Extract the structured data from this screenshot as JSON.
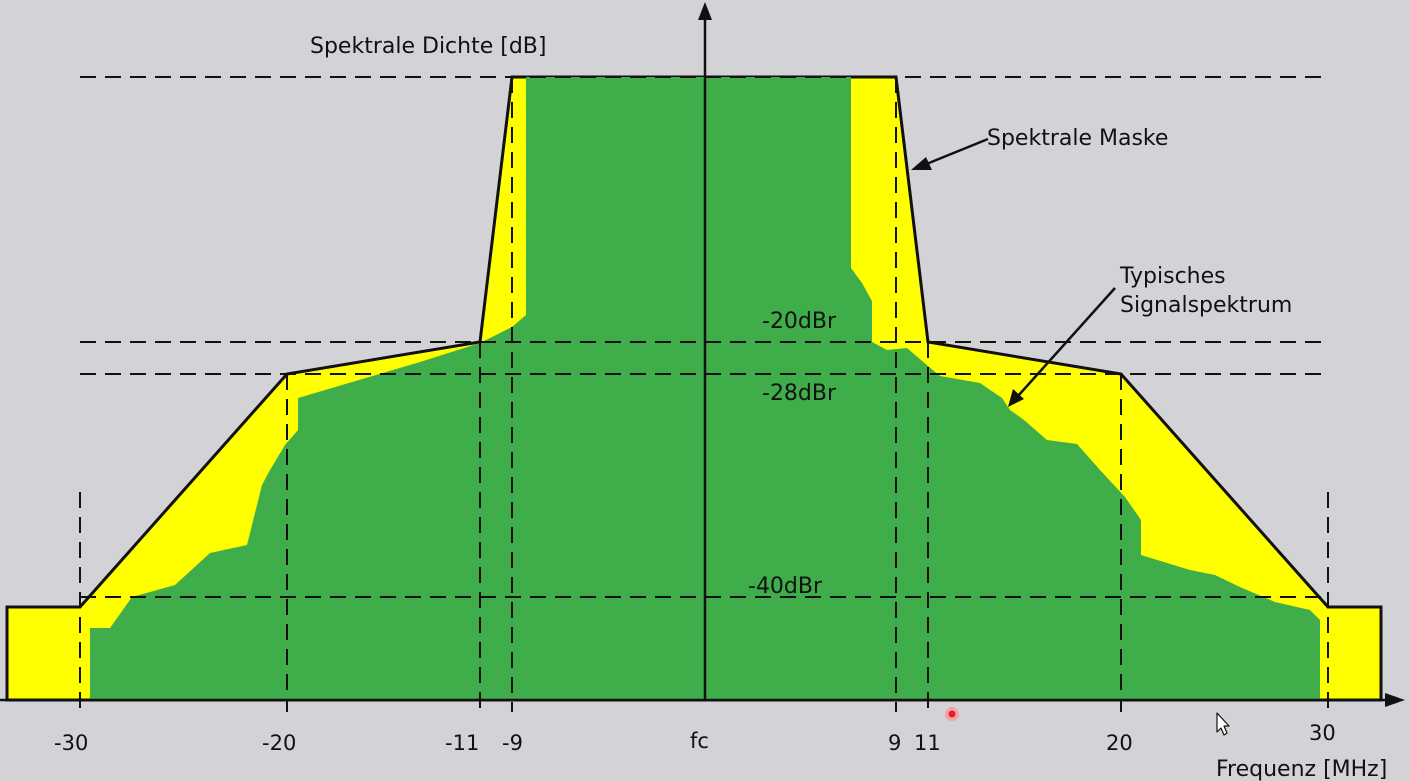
{
  "diagram": {
    "y_axis_label": "Spektrale Dichte [dB]",
    "x_axis_label": "Frequenz [MHz]",
    "center_label": "fc",
    "levels": [
      "-20dBr",
      "-28dBr",
      "-40dBr"
    ],
    "annotations": {
      "mask": "Spektrale Maske",
      "signal_line1": "Typisches",
      "signal_line2": "Signalspektrum"
    },
    "x_ticks": [
      "-30",
      "-20",
      "-11",
      "-9",
      "9",
      "11",
      "20",
      "30"
    ],
    "colors": {
      "background": "#d3d2d6",
      "mask_fill": "#ffff00",
      "signal_fill": "#3fae4a",
      "lines": "#000000"
    }
  }
}
